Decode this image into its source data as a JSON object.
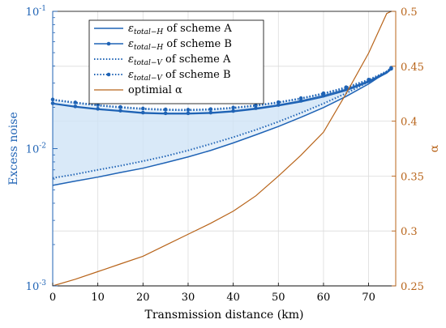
{
  "chart_data": {
    "type": "line",
    "xlabel": "Transmission distance (km)",
    "ylabel_left": "Excess noise",
    "ylabel_right": "α",
    "xlim": [
      0,
      76
    ],
    "ylim_left": [
      0.001,
      0.1
    ],
    "ylim_right": [
      0.25,
      0.5
    ],
    "left_scale": "log",
    "x_ticks": [
      0,
      10,
      20,
      30,
      40,
      50,
      60,
      70
    ],
    "x_tick_labels": [
      "0",
      "10",
      "20",
      "30",
      "40",
      "50",
      "60",
      "70"
    ],
    "left_ticks": [
      0.001,
      0.01,
      0.1
    ],
    "left_tick_labels": [
      {
        "base": "10",
        "exp": "-3"
      },
      {
        "base": "10",
        "exp": "-2"
      },
      {
        "base": "10",
        "exp": "-1"
      }
    ],
    "right_ticks": [
      0.25,
      0.3,
      0.35,
      0.4,
      0.45,
      0.5
    ],
    "right_tick_labels": [
      "0.25",
      "0.3",
      "0.35",
      "0.4",
      "0.45",
      "0.5"
    ],
    "grid": true,
    "legend_position": "top-left",
    "colors": {
      "blue": "#1f63b5",
      "orange": "#b8641a",
      "fill": "#cfe3f5"
    },
    "series": [
      {
        "name": "εtotal-H of scheme A",
        "legend": {
          "eps": "ε",
          "sub": "total−H",
          "tail": " of scheme A"
        },
        "axis": "left",
        "style": "solid",
        "marker": "none",
        "x": [
          0,
          5,
          10,
          15,
          20,
          25,
          30,
          35,
          40,
          45,
          50,
          55,
          60,
          65,
          70,
          72,
          74,
          75
        ],
        "y": [
          0.0212,
          0.0201,
          0.0193,
          0.0187,
          0.0181,
          0.0179,
          0.0179,
          0.0181,
          0.0186,
          0.0194,
          0.0205,
          0.0219,
          0.0238,
          0.0265,
          0.0305,
          0.0328,
          0.0355,
          0.0378
        ]
      },
      {
        "name": "εtotal-H of scheme B",
        "legend": {
          "eps": "ε",
          "sub": "total−H",
          "tail": " of scheme B"
        },
        "axis": "left",
        "style": "solid",
        "marker": "dot",
        "x": [
          0,
          5,
          10,
          15,
          20,
          25,
          30,
          35,
          40,
          45,
          50,
          55,
          60,
          65,
          70,
          72,
          74,
          75
        ],
        "y": [
          0.0214,
          0.0203,
          0.0195,
          0.0189,
          0.0183,
          0.0181,
          0.0181,
          0.0183,
          0.0188,
          0.0197,
          0.0208,
          0.0223,
          0.0243,
          0.027,
          0.0311,
          0.0334,
          0.036,
          0.0382
        ]
      },
      {
        "name": "εtotal-V of scheme A",
        "legend": {
          "eps": "ε",
          "sub": "total−V",
          "tail": " of scheme A"
        },
        "axis": "left",
        "style": "dotted",
        "marker": "none",
        "x": [
          0,
          5,
          10,
          15,
          20,
          25,
          30,
          35,
          40,
          45,
          50,
          55,
          60,
          65,
          70,
          72,
          74,
          75
        ],
        "y": [
          0.0226,
          0.0215,
          0.0206,
          0.0199,
          0.0194,
          0.0191,
          0.019,
          0.0192,
          0.0197,
          0.0205,
          0.0216,
          0.0231,
          0.025,
          0.0276,
          0.0314,
          0.0336,
          0.0362,
          0.0385
        ]
      },
      {
        "name": "εtotal-V of scheme B",
        "legend": {
          "eps": "ε",
          "sub": "total−V",
          "tail": " of scheme B"
        },
        "axis": "left",
        "style": "dotted",
        "marker": "dot",
        "x": [
          0,
          5,
          10,
          15,
          20,
          25,
          30,
          35,
          40,
          45,
          50,
          55,
          60,
          65,
          70,
          72,
          74,
          75
        ],
        "y": [
          0.0228,
          0.0217,
          0.0208,
          0.0201,
          0.0196,
          0.0193,
          0.0192,
          0.0194,
          0.0199,
          0.0207,
          0.0218,
          0.0233,
          0.0253,
          0.028,
          0.0318,
          0.034,
          0.0366,
          0.0388
        ]
      },
      {
        "name": "scheme A lower H",
        "axis": "left",
        "style": "solid",
        "marker": "none",
        "in_legend": false,
        "x": [
          0,
          5,
          10,
          15,
          20,
          25,
          30,
          35,
          40,
          45,
          50,
          55,
          60,
          65,
          70,
          72,
          74,
          75
        ],
        "y": [
          0.0054,
          0.0058,
          0.0062,
          0.0067,
          0.0072,
          0.0079,
          0.0087,
          0.0097,
          0.011,
          0.0126,
          0.0145,
          0.0169,
          0.0199,
          0.024,
          0.0296,
          0.0327,
          0.0358,
          0.0378
        ]
      },
      {
        "name": "scheme A lower V",
        "axis": "left",
        "style": "dotted",
        "marker": "none",
        "in_legend": false,
        "x": [
          0,
          5,
          10,
          15,
          20,
          25,
          30,
          35,
          40,
          45,
          50,
          55,
          60,
          65,
          70,
          72,
          74,
          75
        ],
        "y": [
          0.0061,
          0.0065,
          0.007,
          0.0075,
          0.0081,
          0.0088,
          0.0097,
          0.0108,
          0.0121,
          0.0137,
          0.0157,
          0.0182,
          0.0213,
          0.0253,
          0.0306,
          0.0335,
          0.0364,
          0.0385
        ]
      },
      {
        "name": "optimial α",
        "legend": {
          "eps": "",
          "sub": "",
          "tail": "optimial α"
        },
        "axis": "right",
        "style": "solid",
        "marker": "none",
        "color": "orange",
        "x": [
          0,
          5,
          10,
          15,
          20,
          25,
          30,
          35,
          40,
          45,
          50,
          55,
          60,
          65,
          70,
          72,
          74,
          75
        ],
        "y": [
          0.25,
          0.256,
          0.263,
          0.27,
          0.277,
          0.287,
          0.297,
          0.307,
          0.318,
          0.332,
          0.35,
          0.369,
          0.39,
          0.425,
          0.462,
          0.48,
          0.498,
          0.5
        ]
      }
    ]
  }
}
